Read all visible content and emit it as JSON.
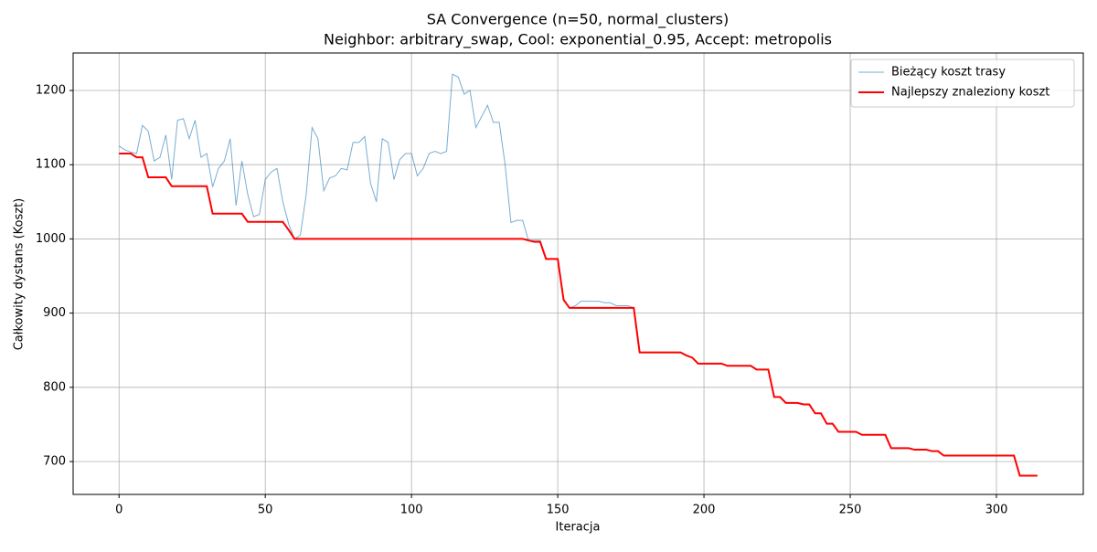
{
  "chart_data": {
    "type": "line",
    "title": "SA Convergence (n=50, normal_clusters)",
    "subtitle": "Neighbor: arbitrary_swap, Cool: exponential_0.95, Accept: metropolis",
    "x_label": "Iteracja",
    "y_label": "Całkowity dystans (Koszt)",
    "x": [
      0,
      2,
      4,
      6,
      8,
      10,
      12,
      14,
      16,
      18,
      20,
      22,
      24,
      26,
      28,
      30,
      32,
      34,
      36,
      38,
      40,
      42,
      44,
      46,
      48,
      50,
      52,
      54,
      56,
      58,
      60,
      62,
      64,
      66,
      68,
      70,
      72,
      74,
      76,
      78,
      80,
      82,
      84,
      86,
      88,
      90,
      92,
      94,
      96,
      98,
      100,
      102,
      104,
      106,
      108,
      110,
      112,
      114,
      116,
      118,
      120,
      122,
      124,
      126,
      128,
      130,
      132,
      134,
      136,
      138,
      140,
      142,
      144,
      146,
      148,
      150,
      152,
      154,
      156,
      158,
      160,
      162,
      164,
      166,
      168,
      170,
      172,
      174,
      176,
      178,
      180,
      182,
      184,
      186,
      188,
      190,
      192,
      194,
      196,
      198,
      200,
      202,
      204,
      206,
      208,
      210,
      212,
      214,
      216,
      218,
      220,
      222,
      224,
      226,
      228,
      230,
      232,
      234,
      236,
      238,
      240,
      242,
      244,
      246,
      248,
      250,
      252,
      254,
      256,
      258,
      260,
      262,
      264,
      266,
      268,
      270,
      272,
      274,
      276,
      278,
      280,
      282,
      284,
      286,
      288,
      290,
      292,
      294,
      296,
      298,
      300,
      302,
      304,
      306,
      308,
      310,
      312,
      314
    ],
    "series": [
      {
        "name": "Bieżący koszt trasy",
        "color": "#1f77b4",
        "width": 1,
        "opacity": 0.6,
        "values": [
          1125,
          1120,
          1117,
          1115,
          1153,
          1145,
          1105,
          1110,
          1140,
          1080,
          1160,
          1162,
          1135,
          1160,
          1110,
          1115,
          1070,
          1095,
          1105,
          1135,
          1045,
          1105,
          1060,
          1030,
          1033,
          1080,
          1090,
          1095,
          1050,
          1020,
          1000,
          1005,
          1060,
          1150,
          1135,
          1065,
          1082,
          1085,
          1095,
          1093,
          1130,
          1130,
          1138,
          1075,
          1050,
          1135,
          1130,
          1080,
          1107,
          1115,
          1115,
          1085,
          1095,
          1115,
          1118,
          1115,
          1118,
          1222,
          1218,
          1195,
          1200,
          1150,
          1165,
          1180,
          1157,
          1157,
          1100,
          1022,
          1025,
          1025,
          998,
          998,
          998,
          973,
          973,
          973,
          918,
          907,
          910,
          916,
          916,
          916,
          916,
          914,
          914,
          910,
          910,
          910,
          907,
          847,
          847,
          847,
          847,
          847,
          847,
          847,
          847,
          843,
          840,
          832,
          832,
          832,
          832,
          832,
          829,
          829,
          829,
          829,
          829,
          824,
          824,
          824,
          787,
          787,
          779,
          779,
          779,
          777,
          777,
          765,
          765,
          751,
          751,
          740,
          740,
          740,
          740,
          736,
          736,
          736,
          736,
          736,
          718,
          718,
          718,
          718,
          716,
          716,
          716,
          714,
          714,
          708,
          708,
          708,
          708,
          708,
          708,
          708,
          708,
          708,
          708,
          708,
          708,
          708,
          681,
          681,
          681,
          681
        ]
      },
      {
        "name": "Najlepszy znaleziony koszt",
        "color": "#ff0000",
        "width": 2,
        "opacity": 1,
        "values": [
          1115,
          1115,
          1115,
          1110,
          1110,
          1083,
          1083,
          1083,
          1083,
          1071,
          1071,
          1071,
          1071,
          1071,
          1071,
          1071,
          1034,
          1034,
          1034,
          1034,
          1034,
          1034,
          1023,
          1023,
          1023,
          1023,
          1023,
          1023,
          1023,
          1012,
          1000,
          1000,
          1000,
          1000,
          1000,
          1000,
          1000,
          1000,
          1000,
          1000,
          1000,
          1000,
          1000,
          1000,
          1000,
          1000,
          1000,
          1000,
          1000,
          1000,
          1000,
          1000,
          1000,
          1000,
          1000,
          1000,
          1000,
          1000,
          1000,
          1000,
          1000,
          1000,
          1000,
          1000,
          1000,
          1000,
          1000,
          1000,
          1000,
          1000,
          998,
          996,
          996,
          973,
          973,
          973,
          918,
          907,
          907,
          907,
          907,
          907,
          907,
          907,
          907,
          907,
          907,
          907,
          907,
          847,
          847,
          847,
          847,
          847,
          847,
          847,
          847,
          843,
          840,
          832,
          832,
          832,
          832,
          832,
          829,
          829,
          829,
          829,
          829,
          824,
          824,
          824,
          787,
          787,
          779,
          779,
          779,
          777,
          777,
          765,
          765,
          751,
          751,
          740,
          740,
          740,
          740,
          736,
          736,
          736,
          736,
          736,
          718,
          718,
          718,
          718,
          716,
          716,
          716,
          714,
          714,
          708,
          708,
          708,
          708,
          708,
          708,
          708,
          708,
          708,
          708,
          708,
          708,
          708,
          681,
          681,
          681,
          681
        ]
      }
    ],
    "xlim": [
      -15.7,
      329.7
    ],
    "ylim": [
      655.7,
      1250.5
    ],
    "xticks": [
      0,
      50,
      100,
      150,
      200,
      250,
      300
    ],
    "yticks": [
      700,
      800,
      900,
      1000,
      1100,
      1200
    ],
    "grid": true,
    "legend": "upper right"
  }
}
